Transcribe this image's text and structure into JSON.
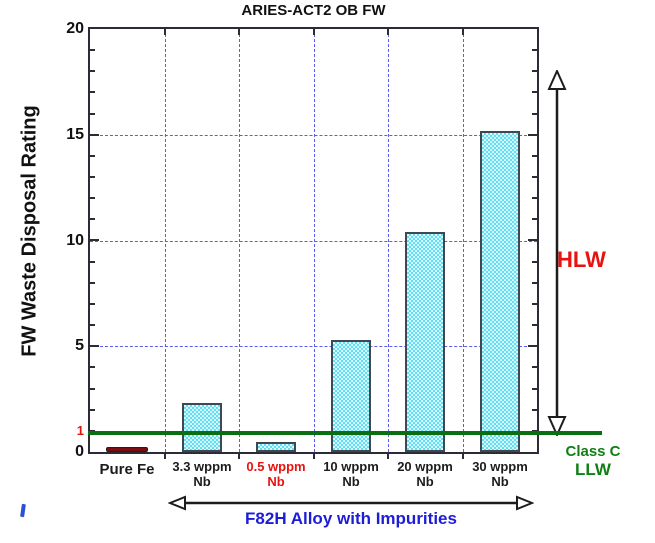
{
  "chart_data": {
    "type": "bar",
    "title": "ARIES-ACT2 OB FW",
    "ylabel": "FW Waste Disposal Rating",
    "ylim": [
      0,
      20
    ],
    "y_major_tick_labels": [
      "0",
      "5",
      "10",
      "15",
      "20"
    ],
    "y_major_tick_values": [
      0,
      5,
      10,
      15,
      20
    ],
    "special_y_tick": {
      "label": "1",
      "value": 1
    },
    "categories": [
      {
        "label": "Pure Fe",
        "sub": "",
        "highlight": false
      },
      {
        "label": "3.3 wppm",
        "sub": "Nb",
        "highlight": false
      },
      {
        "label": "0.5 wppm",
        "sub": "Nb",
        "highlight": true
      },
      {
        "label": "10 wppm",
        "sub": "Nb",
        "highlight": false
      },
      {
        "label": "20 wppm",
        "sub": "Nb",
        "highlight": false
      },
      {
        "label": "30 wppm",
        "sub": "Nb",
        "highlight": false
      }
    ],
    "values": [
      0.15,
      2.3,
      0.45,
      5.3,
      10.4,
      15.2
    ],
    "grid": {
      "style": "dashed",
      "color": "#5b5bf0",
      "h_lines": [
        5,
        10,
        15
      ],
      "v_lines_at_category_boundaries": true
    },
    "reference_line": {
      "value": 1,
      "color": "#0a6e12",
      "label_left": "1"
    },
    "annotations": {
      "hlw": "HLW",
      "class_c": "Class C",
      "llw": "LLW",
      "group_label": "F82H Alloy with Impurities"
    },
    "legend": {
      "visible": false
    },
    "colors": {
      "bar_fill": "#5edff3",
      "bar_fill_light": "#d9f7fc",
      "bar_border": "#40484f",
      "pure_fe_fill": "#7a0e11",
      "axis": "#2c2c38",
      "red_text": "#e8120e",
      "green_text": "#0f8013",
      "blue_text": "#1d1dd8",
      "title_text": "#111111"
    }
  }
}
